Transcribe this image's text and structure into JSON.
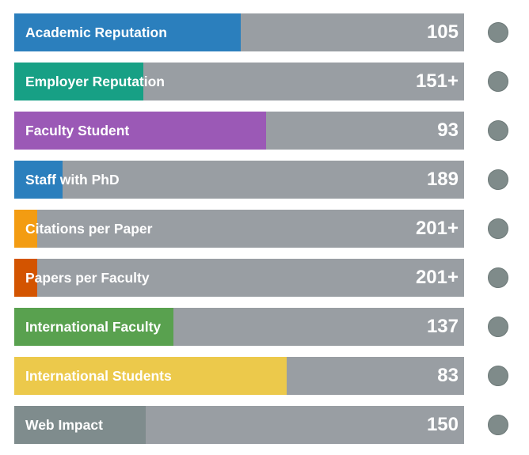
{
  "metrics": [
    {
      "label": "Academic Reputation",
      "value": "105",
      "fill_fraction": 0.503,
      "color": "#2b7fbd"
    },
    {
      "label": "Employer Reputation",
      "value": "151+",
      "fill_fraction": 0.287,
      "color": "#17a085"
    },
    {
      "label": "Faculty Student",
      "value": "93",
      "fill_fraction": 0.56,
      "color": "#9b59b6"
    },
    {
      "label": "Staff with PhD",
      "value": "189",
      "fill_fraction": 0.107,
      "color": "#2b7fbd"
    },
    {
      "label": "Citations per Paper",
      "value": "201+",
      "fill_fraction": 0.051,
      "color": "#f39c12"
    },
    {
      "label": "Papers per Faculty",
      "value": "201+",
      "fill_fraction": 0.051,
      "color": "#d35400"
    },
    {
      "label": "International Faculty",
      "value": "137",
      "fill_fraction": 0.354,
      "color": "#59a14f"
    },
    {
      "label": "International Students",
      "value": "83",
      "fill_fraction": 0.606,
      "color": "#ecc94b"
    },
    {
      "label": "Web Impact",
      "value": "150",
      "fill_fraction": 0.292,
      "color": "#7f8c8d"
    }
  ],
  "track_color": "#999ea3",
  "info_icon": "info-dot-icon"
}
